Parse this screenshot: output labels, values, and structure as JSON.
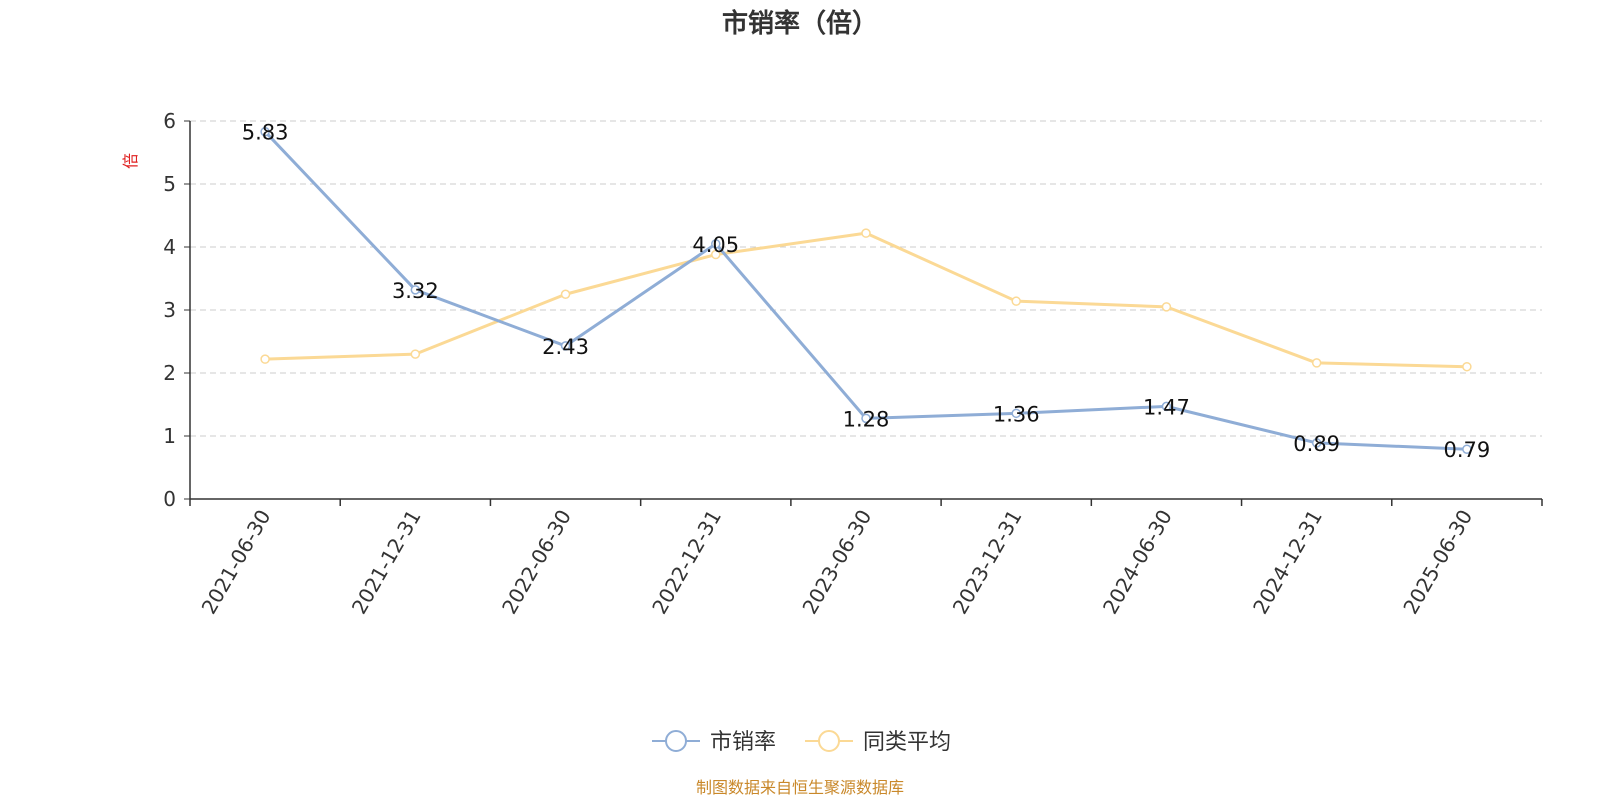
{
  "chart_data": {
    "type": "line",
    "title": "市销率（倍）",
    "ylabel": "倍",
    "categories": [
      "2021-06-30",
      "2021-12-31",
      "2022-06-30",
      "2022-12-31",
      "2023-06-30",
      "2023-12-31",
      "2024-06-30",
      "2024-12-31",
      "2025-06-30"
    ],
    "y_ticks": [
      "0",
      "1",
      "2",
      "3",
      "4",
      "5",
      "6"
    ],
    "ylim": [
      0,
      6
    ],
    "grid": true,
    "legend_position": "bottom-center",
    "series": [
      {
        "name": "市销率",
        "color": "#8fadd6",
        "values": [
          5.83,
          3.32,
          2.43,
          4.05,
          1.28,
          1.36,
          1.47,
          0.89,
          0.79
        ],
        "labels": [
          "5.83",
          "3.32",
          "2.43",
          "4.05",
          "1.28",
          "1.36",
          "1.47",
          "0.89",
          "0.79"
        ]
      },
      {
        "name": "同类平均",
        "color": "#fbd995",
        "values": [
          2.22,
          2.3,
          3.25,
          3.88,
          4.22,
          3.14,
          3.05,
          2.16,
          2.1
        ]
      }
    ]
  },
  "source_note": "制图数据来自恒生聚源数据库"
}
